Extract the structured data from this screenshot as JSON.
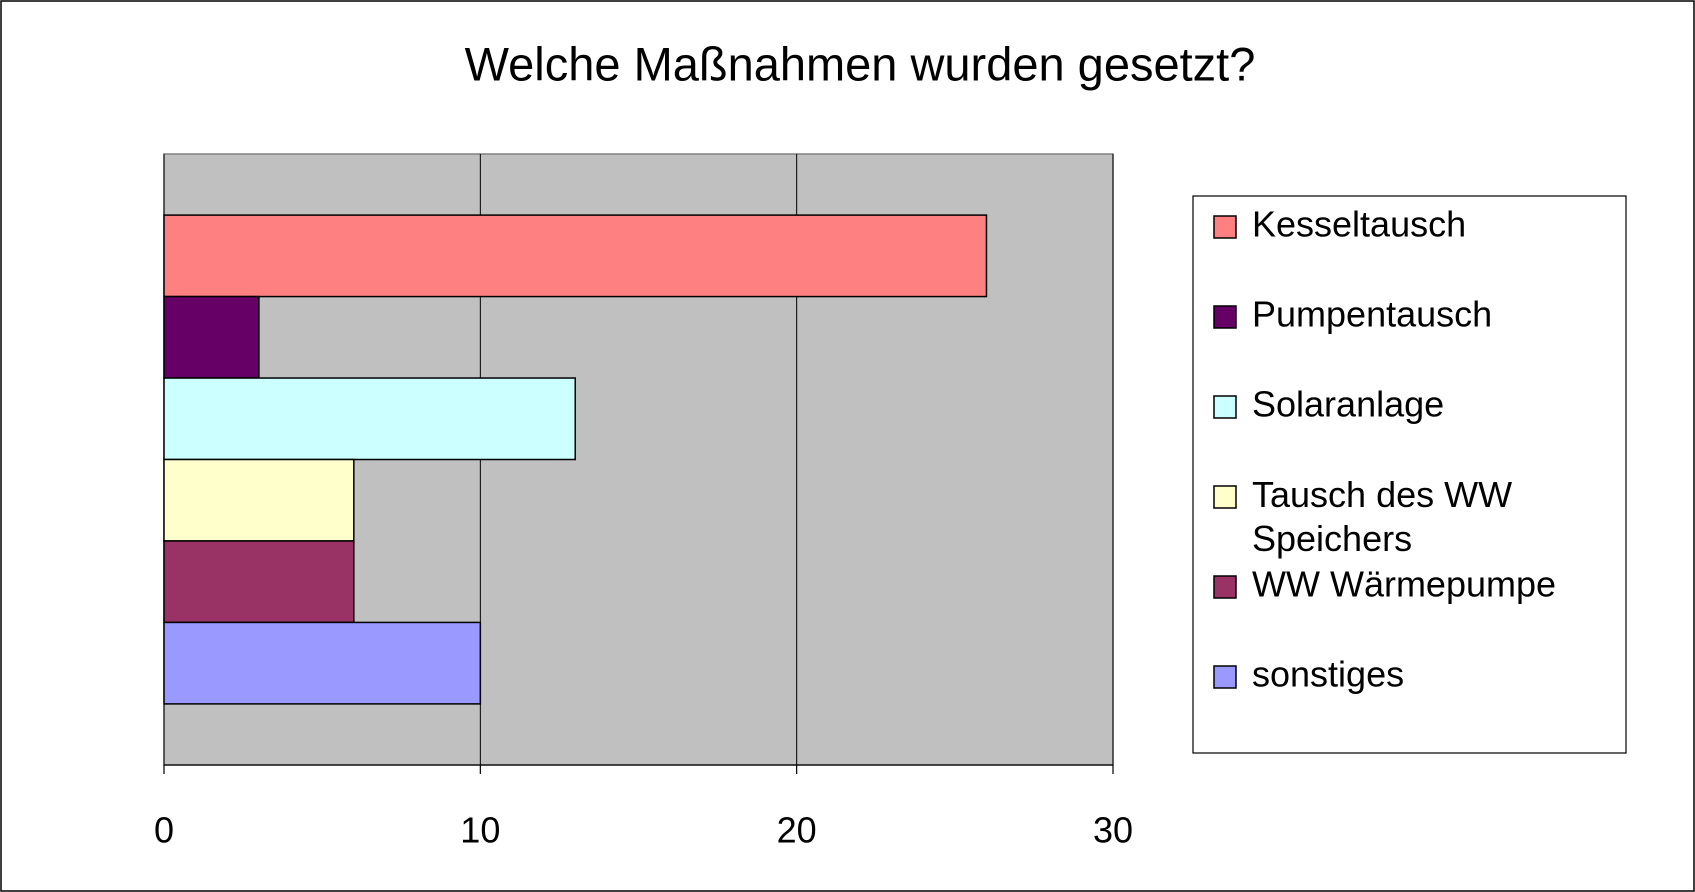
{
  "chart_data": {
    "type": "bar",
    "orientation": "horizontal",
    "title": "Welche Maßnahmen wurden gesetzt?",
    "categories": [
      null
    ],
    "series": [
      {
        "name": "Kesseltausch",
        "color": "#ff8080",
        "values": [
          26
        ]
      },
      {
        "name": "Pumpentausch",
        "color": "#660066",
        "values": [
          3
        ]
      },
      {
        "name": "Solaranlage",
        "color": "#ccffff",
        "values": [
          13
        ]
      },
      {
        "name": "Tausch des WW Speichers",
        "color": "#ffffcc",
        "values": [
          6
        ]
      },
      {
        "name": "WW Wärmepumpe",
        "color": "#993366",
        "values": [
          6
        ]
      },
      {
        "name": "sonstiges",
        "color": "#9999ff",
        "values": [
          10
        ]
      }
    ],
    "xlim": [
      0,
      30
    ],
    "xticks": [
      0,
      10,
      20,
      30
    ],
    "grid": true,
    "legend": "right"
  }
}
